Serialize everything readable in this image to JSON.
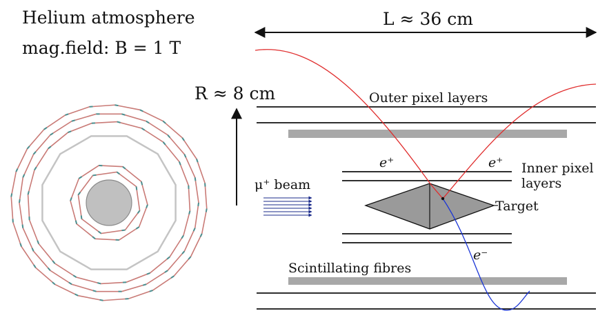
{
  "info": {
    "line1": "Helium atmosphere",
    "line2": "mag.field: B = 1 T"
  },
  "dimensions": {
    "length": "L ≈ 36 cm",
    "radius": "R ≈ 8 cm"
  },
  "labels": {
    "outer_pixel": "Outer pixel layers",
    "inner_pixel_1": "Inner pixel",
    "inner_pixel_2": "layers",
    "beam": "μ⁺ beam",
    "target": "Target",
    "scint_fibres": "Scintillating fibres",
    "positron_1": "e⁺",
    "positron_2": "e⁺",
    "electron": "e⁻"
  },
  "colors": {
    "positron_track": "#e02d2d",
    "electron_track": "#1a35d6",
    "beam_arrows": "#1a2a8a",
    "ladder": "#c97a76",
    "ladder_tick": "#4a8f8f",
    "fibres": "#a8a8a8",
    "target_fill": "#9a9a9a",
    "beampipe_fill": "#c0c0c0"
  }
}
